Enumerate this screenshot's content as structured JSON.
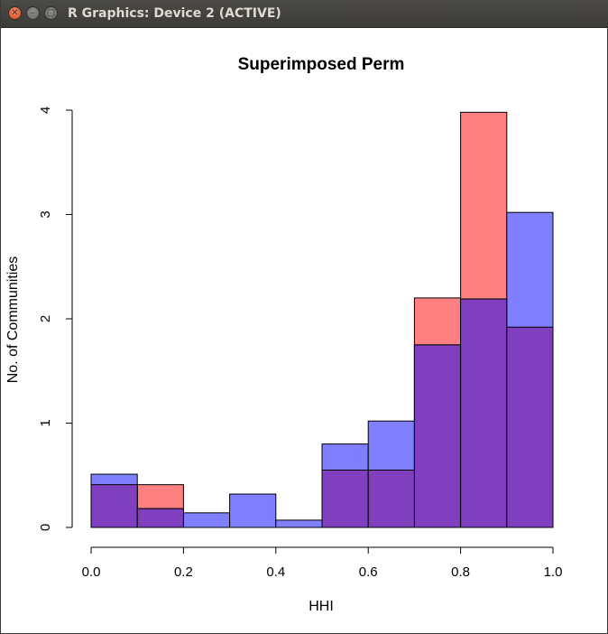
{
  "window": {
    "title": "R Graphics: Device 2 (ACTIVE)",
    "buttons": {
      "close": "close-icon",
      "minimize": "minimize-icon",
      "maximize": "maximize-icon"
    }
  },
  "colors": {
    "red_fill": "#ff8080",
    "blue_fill": "#8080ff",
    "overlap_fill": "#803fbf",
    "axis": "#000000"
  },
  "chart_data": {
    "type": "bar",
    "title": "Superimposed Perm",
    "xlabel": "HHI",
    "ylabel": "No. of Communities",
    "xlim": [
      0,
      1
    ],
    "ylim": [
      0,
      4
    ],
    "x_ticks": [
      "0.0",
      "0.2",
      "0.4",
      "0.6",
      "0.8",
      "1.0"
    ],
    "y_ticks": [
      "0",
      "1",
      "2",
      "3",
      "4"
    ],
    "bin_edges": [
      0.0,
      0.1,
      0.2,
      0.3,
      0.4,
      0.5,
      0.6,
      0.7,
      0.8,
      0.9,
      1.0
    ],
    "series": [
      {
        "values": [
          0.41,
          0.41,
          0.0,
          0.0,
          0.0,
          0.55,
          0.55,
          2.2,
          3.98,
          1.92
        ]
      },
      {
        "values": [
          0.51,
          0.18,
          0.14,
          0.32,
          0.07,
          0.8,
          1.02,
          1.75,
          2.19,
          3.02
        ]
      }
    ]
  }
}
